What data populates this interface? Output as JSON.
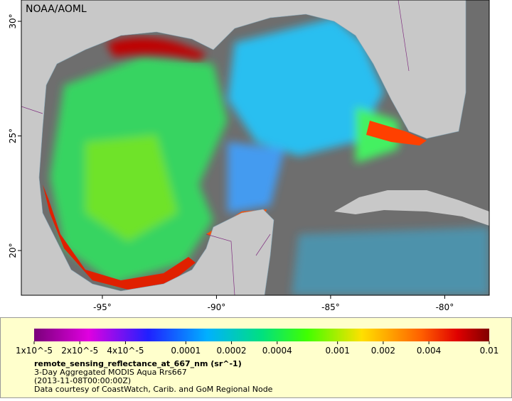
{
  "map": {
    "credit": "NOAA/AOML",
    "lonlim": [
      -98.55,
      -78.05
    ],
    "latlim": [
      18.05,
      30.93
    ],
    "lon_ticks": [
      {
        "value": -95,
        "label": "-95°"
      },
      {
        "value": -90,
        "label": "-90°"
      },
      {
        "value": -85,
        "label": "-85°"
      },
      {
        "value": -80,
        "label": "-80°"
      }
    ],
    "lat_ticks": [
      {
        "value": 30,
        "label": "30°"
      },
      {
        "value": 25,
        "label": "25°"
      },
      {
        "value": 20,
        "label": "20°"
      }
    ]
  },
  "colorbar": {
    "log": true,
    "lim": [
      1e-05,
      0.01
    ],
    "ticks": [
      {
        "value": 1e-05,
        "label": "1x10^-5"
      },
      {
        "value": 2e-05,
        "label": "2x10^-5"
      },
      {
        "value": 4e-05,
        "label": "4x10^-5"
      },
      {
        "value": 0.0001,
        "label": "0.0001"
      },
      {
        "value": 0.0002,
        "label": "0.0002"
      },
      {
        "value": 0.0004,
        "label": "0.0004"
      },
      {
        "value": 0.001,
        "label": "0.001"
      },
      {
        "value": 0.002,
        "label": "0.002"
      },
      {
        "value": 0.004,
        "label": "0.004"
      },
      {
        "value": 0.01,
        "label": "0.01"
      }
    ]
  },
  "legend": {
    "variable": "remote_sensing_reflectance_at_667_nm (sr^-1)",
    "dataset": "3-Day Aggregated MODIS Aqua Rrs667",
    "time": "(2013-11-08T00:00:00Z)",
    "source": "Data courtesy of CoastWatch, Carib. and GoM Regional Node"
  }
}
